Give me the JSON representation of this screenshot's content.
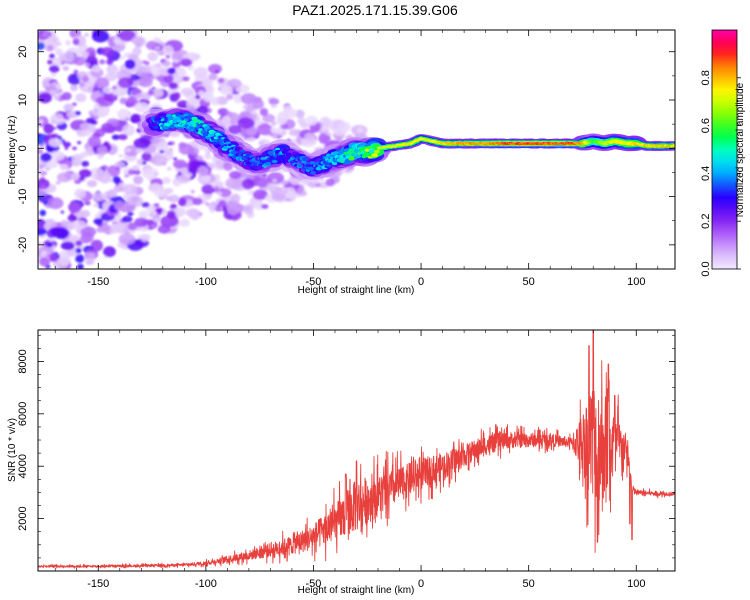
{
  "figure": {
    "title": "PAZ1.2025.171.15.39.G06"
  },
  "chart_data": [
    {
      "type": "heatmap",
      "xlabel": "Height of straight line (km)",
      "ylabel": "Frequency (Hz)",
      "xlim": [
        -178,
        118
      ],
      "ylim": [
        -25,
        24.5
      ],
      "xticks": [
        -150,
        -100,
        -50,
        0,
        50,
        100
      ],
      "yticks": [
        -20,
        -10,
        0,
        10,
        20
      ],
      "colorbar": {
        "label": "Normalized spectral amplitude",
        "range": [
          0,
          1
        ],
        "ticks": [
          "0.0",
          "0.2",
          "0.4",
          "0.6",
          "0.8"
        ],
        "tick_values": [
          0,
          0.2,
          0.4,
          0.6,
          0.8
        ],
        "colormap": "rainbow: white-lavender → violet → blue → cyan → green → yellow → red → magenta"
      },
      "ridge": {
        "description": "dominant spectral ridge (km, Hz, normalized amplitude)",
        "points": [
          [
            -125,
            5,
            0.35
          ],
          [
            -118,
            5.5,
            0.45
          ],
          [
            -112,
            6,
            0.45
          ],
          [
            -105,
            5,
            0.5
          ],
          [
            -98,
            3,
            0.45
          ],
          [
            -92,
            1,
            0.4
          ],
          [
            -86,
            -1,
            0.4
          ],
          [
            -80,
            -2.5,
            0.35
          ],
          [
            -75,
            -3,
            0.35
          ],
          [
            -70,
            -2,
            0.4
          ],
          [
            -65,
            -1,
            0.4
          ],
          [
            -60,
            -2,
            0.35
          ],
          [
            -55,
            -3,
            0.35
          ],
          [
            -50,
            -4,
            0.35
          ],
          [
            -45,
            -3,
            0.4
          ],
          [
            -40,
            -2,
            0.45
          ],
          [
            -35,
            -1.5,
            0.5
          ],
          [
            -30,
            -0.5,
            0.55
          ],
          [
            -25,
            -1,
            0.6
          ],
          [
            -20,
            0,
            0.7
          ],
          [
            -12,
            0.5,
            0.75
          ],
          [
            -5,
            1,
            0.8
          ],
          [
            0,
            2,
            0.75
          ],
          [
            5,
            1.5,
            0.75
          ],
          [
            10,
            1,
            0.8
          ],
          [
            20,
            1,
            0.85
          ],
          [
            30,
            1,
            0.85
          ],
          [
            40,
            1,
            0.9
          ],
          [
            50,
            1,
            0.9
          ],
          [
            60,
            1,
            0.9
          ],
          [
            70,
            1,
            0.9
          ],
          [
            75,
            1,
            0.85
          ],
          [
            80,
            1.5,
            0.6
          ],
          [
            85,
            1,
            0.7
          ],
          [
            90,
            1.5,
            0.75
          ],
          [
            95,
            1,
            0.75
          ],
          [
            100,
            1,
            0.8
          ],
          [
            105,
            0.5,
            0.8
          ],
          [
            110,
            0.5,
            0.8
          ],
          [
            118,
            0.5,
            0.8
          ]
        ]
      }
    },
    {
      "type": "line",
      "xlabel": "Height of straight line (km)",
      "ylabel": "SNR (10 * v/v)",
      "xlim": [
        -178,
        118
      ],
      "ylim": [
        0,
        9200
      ],
      "xticks": [
        -150,
        -100,
        -50,
        0,
        50,
        100
      ],
      "yticks": [
        2000,
        4000,
        6000,
        8000
      ],
      "color": "#e8403c",
      "envelope": {
        "description": "mean SNR level vs height (km, SNR)",
        "points": [
          [
            -178,
            180
          ],
          [
            -150,
            180
          ],
          [
            -130,
            200
          ],
          [
            -110,
            230
          ],
          [
            -100,
            300
          ],
          [
            -90,
            450
          ],
          [
            -80,
            600
          ],
          [
            -70,
            800
          ],
          [
            -60,
            1000
          ],
          [
            -50,
            1300
          ],
          [
            -40,
            1800
          ],
          [
            -35,
            2200
          ],
          [
            -30,
            2500
          ],
          [
            -25,
            2700
          ],
          [
            -20,
            2900
          ],
          [
            -15,
            3100
          ],
          [
            -10,
            3300
          ],
          [
            -5,
            3500
          ],
          [
            0,
            3700
          ],
          [
            10,
            4000
          ],
          [
            20,
            4400
          ],
          [
            30,
            4800
          ],
          [
            40,
            5000
          ],
          [
            50,
            5000
          ],
          [
            60,
            5000
          ],
          [
            70,
            4900
          ],
          [
            75,
            4900
          ],
          [
            80,
            5000
          ],
          [
            85,
            4800
          ],
          [
            90,
            4800
          ],
          [
            95,
            4700
          ],
          [
            97,
            4000
          ],
          [
            98,
            3100
          ],
          [
            100,
            3000
          ],
          [
            110,
            2950
          ],
          [
            118,
            2950
          ]
        ]
      },
      "noise": {
        "description": "relative fluctuation amplitude vs height",
        "points": [
          [
            -178,
            0.25
          ],
          [
            -100,
            0.3
          ],
          [
            -60,
            0.45
          ],
          [
            -45,
            0.5
          ],
          [
            -30,
            0.5
          ],
          [
            -20,
            0.35
          ],
          [
            -10,
            0.25
          ],
          [
            0,
            0.2
          ],
          [
            20,
            0.12
          ],
          [
            40,
            0.08
          ],
          [
            70,
            0.05
          ],
          [
            75,
            0.3
          ],
          [
            80,
            0.6
          ],
          [
            85,
            0.55
          ],
          [
            90,
            0.35
          ],
          [
            95,
            0.15
          ],
          [
            100,
            0.04
          ],
          [
            118,
            0.03
          ]
        ]
      },
      "peaks": [
        [
          -30,
          4200
        ],
        [
          -35,
          3700
        ],
        [
          78,
          8600
        ],
        [
          80,
          9200
        ],
        [
          82,
          1100
        ],
        [
          87,
          7900
        ],
        [
          90,
          6700
        ],
        [
          97,
          1800
        ],
        [
          98,
          1200
        ]
      ]
    }
  ]
}
